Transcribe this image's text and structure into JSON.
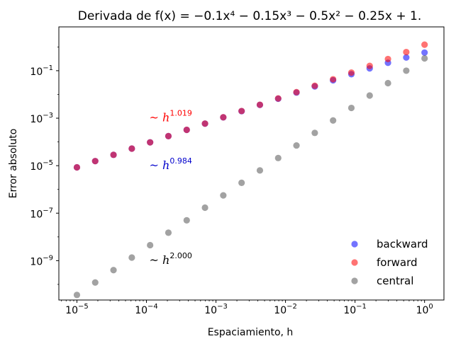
{
  "chart_data": {
    "type": "scatter",
    "title": "Derivada de f(x) = −0.1x⁴ − 0.15x³ − 0.5x² − 0.25x + 1.",
    "xlabel": "Espaciamiento, h",
    "ylabel": "Error absoluto",
    "xscale": "log",
    "yscale": "log",
    "xlim": [
      5.5e-06,
      1.9
    ],
    "ylim": [
      2.2e-11,
      7.0
    ],
    "x_ticks": [
      {
        "value": 1e-05,
        "base": "10",
        "exp": "−5"
      },
      {
        "value": 0.0001,
        "base": "10",
        "exp": "−4"
      },
      {
        "value": 0.001,
        "base": "10",
        "exp": "−3"
      },
      {
        "value": 0.01,
        "base": "10",
        "exp": "−2"
      },
      {
        "value": 0.1,
        "base": "10",
        "exp": "−1"
      },
      {
        "value": 1,
        "base": "10",
        "exp": "0"
      }
    ],
    "y_ticks": [
      {
        "value": 1e-09,
        "base": "10",
        "exp": "−9"
      },
      {
        "value": 1e-07,
        "base": "10",
        "exp": "−7"
      },
      {
        "value": 1e-05,
        "base": "10",
        "exp": "−5"
      },
      {
        "value": 0.001,
        "base": "10",
        "exp": "−3"
      },
      {
        "value": 0.1,
        "base": "10",
        "exp": "−1"
      }
    ],
    "x": [
      1e-05,
      1.833e-05,
      3.36e-05,
      6.158e-05,
      0.0001129,
      0.0002069,
      0.0003793,
      0.0006952,
      0.001274,
      0.002336,
      0.004281,
      0.007848,
      0.01438,
      0.02637,
      0.04833,
      0.08859,
      0.1624,
      0.2976,
      0.5456,
      1.0
    ],
    "series": [
      {
        "name": "backward",
        "color": "#0000ff",
        "values": [
          8.5e-06,
          1.56e-05,
          2.86e-05,
          5.24e-05,
          9.6e-05,
          0.000176,
          0.000322,
          0.00059,
          0.00108,
          0.00198,
          0.00363,
          0.0066,
          0.012,
          0.0218,
          0.0395,
          0.071,
          0.125,
          0.215,
          0.36,
          0.58
        ]
      },
      {
        "name": "forward",
        "color": "#ff0000",
        "values": [
          8.5e-06,
          1.56e-05,
          2.86e-05,
          5.24e-05,
          9.6e-05,
          0.000176,
          0.000323,
          0.000592,
          0.00109,
          0.002,
          0.00368,
          0.0068,
          0.0125,
          0.0232,
          0.0435,
          0.083,
          0.16,
          0.31,
          0.61,
          1.25
        ]
      },
      {
        "name": "central",
        "color": "#555555",
        "values": [
          3.6e-11,
          1.2e-10,
          4e-10,
          1.35e-09,
          4.5e-09,
          1.5e-08,
          5e-08,
          1.7e-07,
          5.6e-07,
          1.9e-06,
          6.3e-06,
          2.1e-05,
          7.1e-05,
          0.00024,
          0.0008,
          0.0027,
          0.009,
          0.03,
          0.1,
          0.33
        ]
      }
    ],
    "annotations": [
      {
        "text": "~ h",
        "exp": "1.019",
        "color": "#ff0000",
        "x": 0.00011,
        "y": 0.0011
      },
      {
        "text": "~ h",
        "exp": "0.984",
        "color": "#0000cc",
        "x": 0.00011,
        "y": 1.1e-05
      },
      {
        "text": "~ h",
        "exp": "2.000",
        "color": "#000000",
        "x": 0.00011,
        "y": 1.1e-09
      }
    ],
    "legend": {
      "placement": "lower-right"
    },
    "grid": false
  }
}
